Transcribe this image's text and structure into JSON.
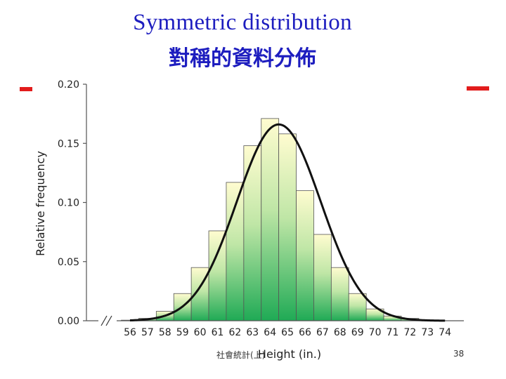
{
  "slide": {
    "title_en": "Symmetric distribution",
    "title_zh": "對稱的資料分佈",
    "footer": "社會統計(上)",
    "page_number": "38"
  },
  "colors": {
    "title": "#1d1dbf",
    "accent_marks": "#e21c1c",
    "bar_top": "#fffcd0",
    "bar_bottom": "#1faa55",
    "curve": "#111111"
  },
  "chart_data": {
    "type": "bar",
    "xlabel": "Height (in.)",
    "ylabel": "Relative frequency",
    "ylim": [
      0,
      0.2
    ],
    "yticks": [
      "0.00",
      "0.05",
      "0.10",
      "0.15",
      "0.20"
    ],
    "categories": [
      "56",
      "57",
      "58",
      "59",
      "60",
      "61",
      "62",
      "63",
      "64",
      "65",
      "66",
      "67",
      "68",
      "69",
      "70",
      "71",
      "72",
      "73",
      "74"
    ],
    "values": [
      0.0005,
      0.002,
      0.008,
      0.023,
      0.045,
      0.076,
      0.117,
      0.148,
      0.171,
      0.158,
      0.11,
      0.073,
      0.045,
      0.023,
      0.01,
      0.004,
      0.002,
      0.0005,
      0
    ],
    "overlay_curve": {
      "type": "normal",
      "mean": 64.5,
      "peak": 0.166,
      "sd": 2.4
    },
    "axis_break": true,
    "grid": false
  }
}
